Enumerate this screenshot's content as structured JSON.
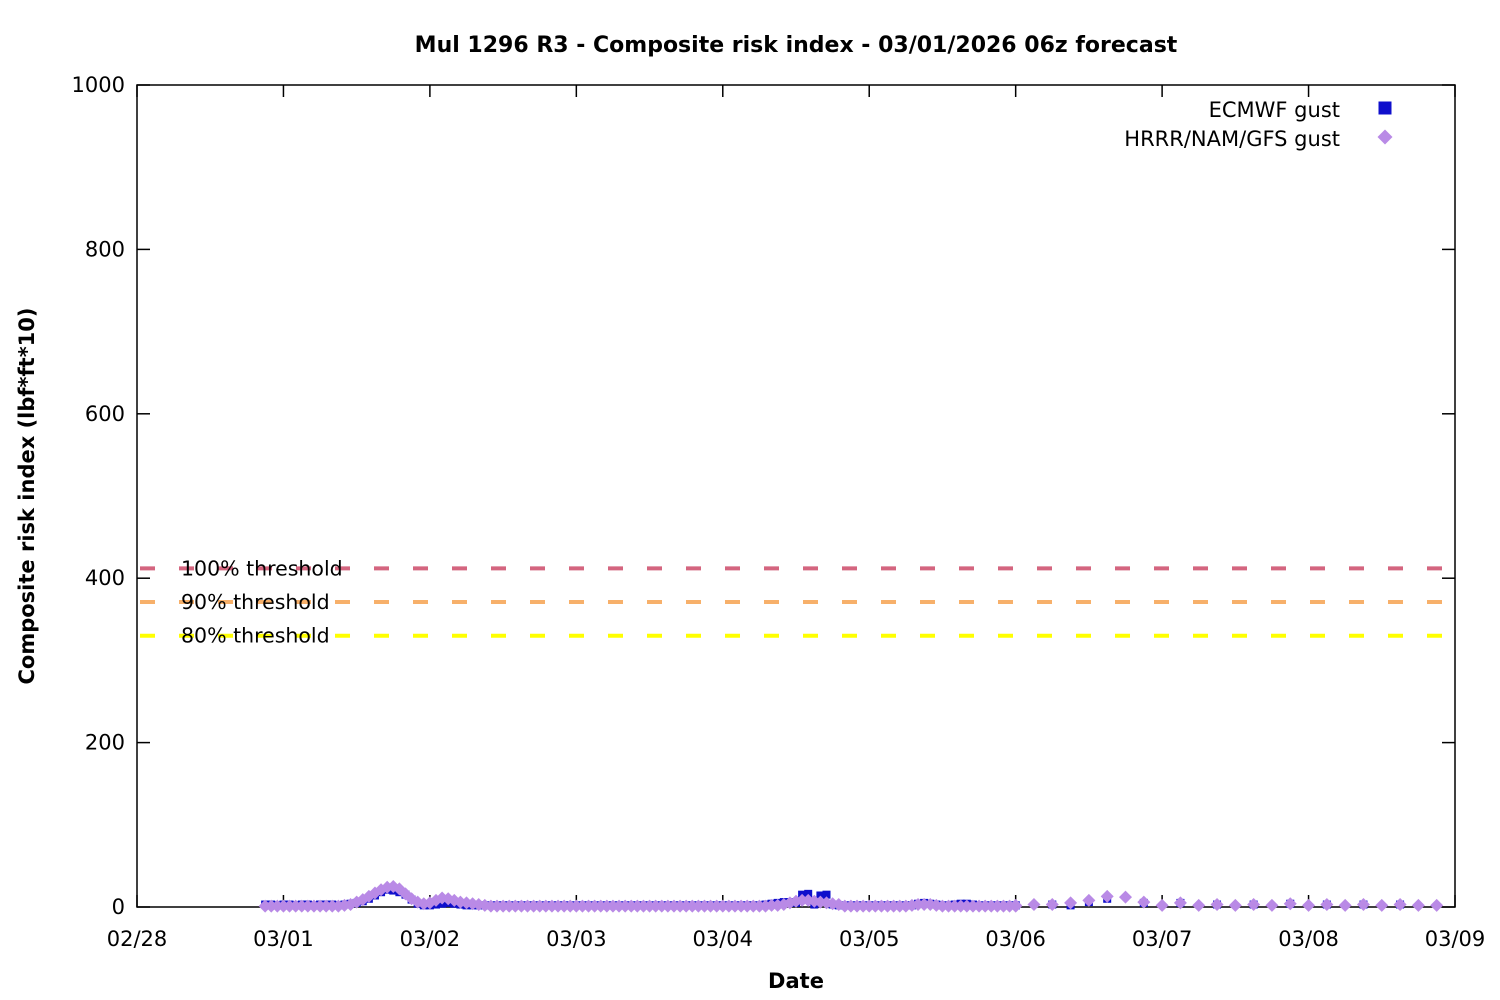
{
  "chart_data": {
    "type": "scatter",
    "title": "Mul 1296 R3 - Composite risk index - 03/01/2026 06z forecast",
    "xlabel": "Date",
    "ylabel": "Composite risk index (lbf*ft*10)",
    "x_ticks": [
      "02/28",
      "03/01",
      "03/02",
      "03/03",
      "03/04",
      "03/05",
      "03/06",
      "03/07",
      "03/08",
      "03/09"
    ],
    "y_ticks": [
      0,
      200,
      400,
      600,
      800,
      1000
    ],
    "ylim": [
      0,
      1000
    ],
    "xlim_days": [
      0,
      9
    ],
    "grid": "off",
    "legend_position": "top-right",
    "background_color": "#ffffff",
    "axis_color": "#000000",
    "thresholds": [
      {
        "label": "100% threshold",
        "value": 412,
        "color": "#d4657f"
      },
      {
        "label": "90% threshold",
        "value": 371,
        "color": "#f7b06a"
      },
      {
        "label": "80% threshold",
        "value": 330,
        "color": "#ffff00"
      }
    ],
    "x_unit": "days since 02/28 00:00",
    "series": [
      {
        "name": "ECMWF gust",
        "marker": "square",
        "color": "#0f0fcc",
        "segments": [
          {
            "t0": 0.875,
            "dt_hours": 1,
            "values": [
              3,
              3,
              2,
              3,
              3,
              2,
              3,
              3,
              2,
              3,
              3,
              3,
              2,
              3,
              4,
              5,
              7,
              10,
              14,
              18,
              21,
              20,
              18,
              15,
              9,
              4,
              2,
              2,
              3,
              4,
              5,
              4,
              3,
              2,
              2,
              2,
              2,
              2,
              2,
              2,
              2,
              2,
              2,
              2,
              2,
              2,
              2,
              2,
              2,
              2,
              2,
              2,
              2,
              2,
              2,
              2,
              2,
              2,
              2,
              2,
              2,
              2,
              2,
              2,
              2,
              2,
              2,
              2,
              2,
              2,
              2,
              2,
              2,
              2,
              2,
              2,
              2,
              2,
              2,
              2,
              2,
              2,
              3,
              4,
              5,
              6,
              6,
              5,
              15,
              16,
              3,
              14,
              15,
              3,
              2,
              2,
              2,
              2,
              2,
              2,
              2,
              2,
              2,
              2,
              2,
              2,
              2,
              4,
              5,
              4,
              3,
              2,
              2,
              3,
              4,
              4,
              3,
              2,
              2,
              2,
              2,
              2,
              2,
              2
            ]
          },
          {
            "t0": 6.0,
            "dt_hours": 3,
            "values": [
              2,
              null,
              3,
              2,
              6,
              10,
              null,
              5,
              null,
              5,
              null,
              3,
              null,
              3,
              null,
              4,
              null,
              3,
              null,
              3,
              null,
              3,
              null,
              null
            ]
          }
        ]
      },
      {
        "name": "HRRR/NAM/GFS gust",
        "marker": "diamond",
        "color": "#b98ae6",
        "segments": [
          {
            "t0": 0.875,
            "dt_hours": 1,
            "values": [
              1,
              1,
              1,
              1,
              1,
              1,
              1,
              1,
              1,
              1,
              1,
              1,
              1,
              2,
              3,
              6,
              9,
              13,
              17,
              21,
              24,
              25,
              22,
              16,
              10,
              6,
              4,
              5,
              8,
              11,
              10,
              8,
              6,
              5,
              4,
              3,
              2,
              1,
              1,
              1,
              1,
              1,
              1,
              1,
              1,
              1,
              1,
              1,
              1,
              1,
              1,
              1,
              1,
              1,
              1,
              1,
              1,
              1,
              1,
              1,
              1,
              1,
              1,
              1,
              1,
              1,
              1,
              1,
              1,
              1,
              1,
              1,
              1,
              1,
              1,
              1,
              1,
              1,
              1,
              1,
              1,
              1,
              1,
              2,
              2,
              3,
              5,
              7,
              8,
              8,
              7,
              6,
              5,
              4,
              3,
              1,
              1,
              1,
              1,
              1,
              1,
              1,
              1,
              1,
              1,
              1,
              2,
              3,
              3,
              3,
              2,
              1,
              1,
              1,
              1,
              1,
              1,
              1,
              1,
              1,
              1,
              1,
              1,
              1
            ]
          },
          {
            "t0": 6.0,
            "dt_hours": 3,
            "values": [
              2,
              3,
              3,
              5,
              8,
              13,
              12,
              6,
              2,
              5,
              2,
              3,
              2,
              3,
              2,
              4,
              2,
              3,
              2,
              3,
              2,
              3,
              2,
              2
            ]
          }
        ]
      }
    ]
  }
}
